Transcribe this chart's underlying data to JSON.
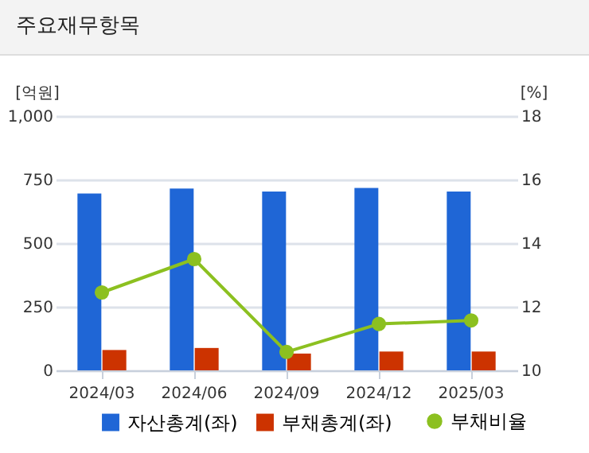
{
  "chart_data": {
    "type": "bar",
    "title": "주요재무항목",
    "ylabel": "[억원]",
    "y2label": "[%]",
    "categories": [
      "2024/03",
      "2024/06",
      "2024/09",
      "2024/12",
      "2025/03"
    ],
    "series": [
      {
        "name": "자산총계(좌)",
        "color": "#1f66d6",
        "values": [
          695,
          715,
          703,
          717,
          703
        ]
      },
      {
        "name": "부채총계(좌)",
        "color": "#cc3300",
        "values": [
          80,
          88,
          66,
          74,
          74
        ]
      },
      {
        "name": "부채비율",
        "type": "line",
        "axis": "y2",
        "color": "#8cc020",
        "values": [
          12.45,
          13.5,
          10.58,
          11.46,
          11.57
        ]
      }
    ],
    "ylim": [
      0,
      1000
    ],
    "yticks": [
      0,
      250,
      500,
      750,
      {
        "value": 1000,
        "label": "1,000"
      }
    ],
    "y2lim": [
      10,
      18
    ],
    "y2ticks": [
      10,
      12,
      14,
      16,
      18
    ],
    "grid": "y",
    "legend": "bottom",
    "marker": "circle"
  }
}
